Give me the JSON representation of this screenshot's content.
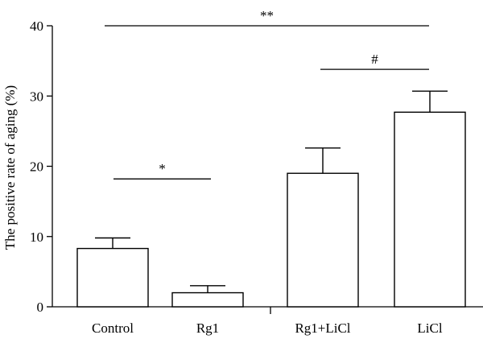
{
  "chart_data": {
    "type": "bar",
    "title": "",
    "xlabel": "",
    "ylabel": "The positive rate of aging (%)",
    "ylim": [
      0,
      40
    ],
    "yticks": [
      "0",
      "10",
      "20",
      "30",
      "40"
    ],
    "categories": [
      "Control",
      "Rg1",
      "Rg1+LiCl",
      "LiCl"
    ],
    "values": [
      8.3,
      2.0,
      19.0,
      27.7
    ],
    "errors": [
      1.5,
      1.0,
      3.6,
      3.0
    ],
    "bar_fill": "#ffffff",
    "bar_stroke": "#000000",
    "significance": [
      {
        "label": "*",
        "from": "Control",
        "to": "Rg1",
        "y": 18.2
      },
      {
        "label": "#",
        "from": "Rg1+LiCl",
        "to": "LiCl",
        "y": 33.8
      },
      {
        "label": "**",
        "from": "Control",
        "to": "LiCl",
        "y": 40.0
      }
    ]
  }
}
